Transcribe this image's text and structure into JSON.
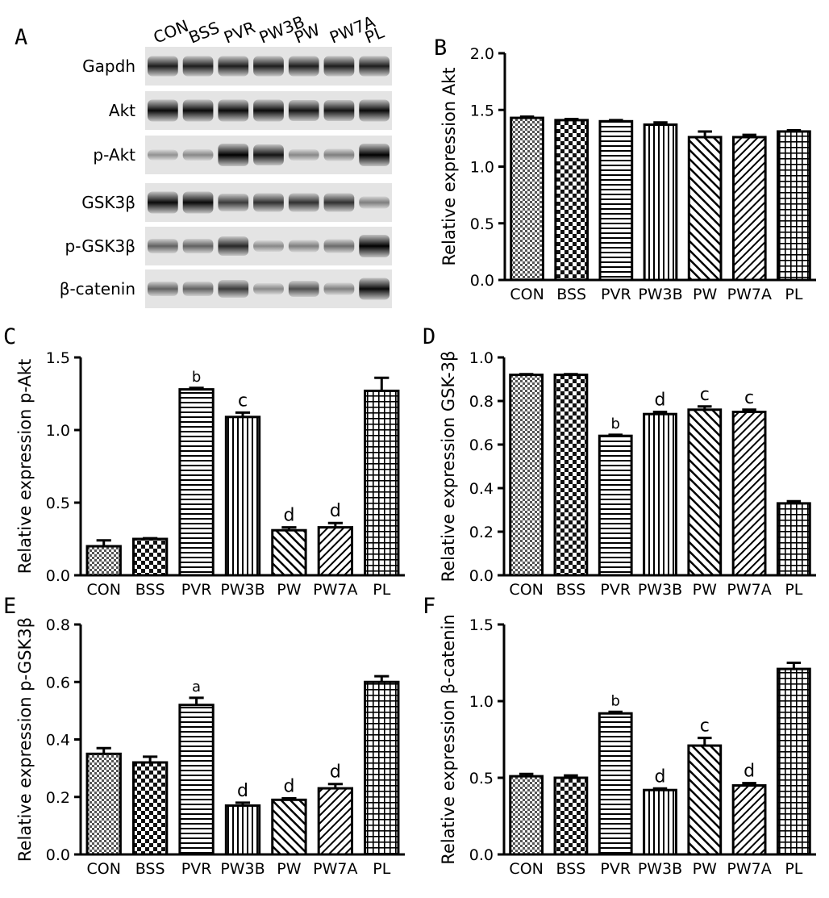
{
  "figure": {
    "panel_letters": [
      "A",
      "B",
      "C",
      "D",
      "E",
      "F"
    ]
  },
  "blot": {
    "lanes": [
      "CON",
      "BSS",
      "PVR",
      "PW3B",
      "PW",
      "PW7A",
      "PL"
    ],
    "rows": [
      {
        "label": "Gapdh",
        "intensity": [
          0.85,
          0.85,
          0.85,
          0.85,
          0.85,
          0.85,
          0.85
        ]
      },
      {
        "label": "Akt",
        "intensity": [
          0.95,
          0.95,
          0.95,
          0.95,
          0.9,
          0.9,
          0.95
        ]
      },
      {
        "label": "p-Akt",
        "intensity": [
          0.25,
          0.3,
          1.0,
          0.9,
          0.3,
          0.35,
          1.0
        ]
      },
      {
        "label": "GSK3β",
        "intensity": [
          0.95,
          0.95,
          0.7,
          0.75,
          0.75,
          0.75,
          0.35
        ]
      },
      {
        "label": "p-GSK3β",
        "intensity": [
          0.5,
          0.5,
          0.8,
          0.3,
          0.35,
          0.45,
          1.0
        ]
      },
      {
        "label": "β-catenin",
        "intensity": [
          0.5,
          0.5,
          0.7,
          0.3,
          0.6,
          0.35,
          0.95
        ]
      }
    ]
  },
  "chart_data": [
    {
      "panel": "B",
      "type": "bar",
      "categories": [
        "CON",
        "BSS",
        "PVR",
        "PW3B",
        "PW",
        "PW7A",
        "PL"
      ],
      "values": [
        1.43,
        1.41,
        1.4,
        1.37,
        1.26,
        1.26,
        1.31
      ],
      "errors": [
        0.01,
        0.01,
        0.01,
        0.02,
        0.05,
        0.02,
        0.01
      ],
      "letters": [
        "",
        "",
        "",
        "",
        "",
        "",
        ""
      ],
      "patterns": [
        "check",
        "bigcheck",
        "hlines",
        "vlines",
        "diag",
        "diag2",
        "grid"
      ],
      "ylabel": "Relative expression Akt",
      "ylim": [
        0,
        2.0
      ],
      "ticks": [
        "0.0",
        "0.5",
        "1.0",
        "1.5",
        "2.0"
      ]
    },
    {
      "panel": "C",
      "type": "bar",
      "categories": [
        "CON",
        "BSS",
        "PVR",
        "PW3B",
        "PW",
        "PW7A",
        "PL"
      ],
      "values": [
        0.2,
        0.25,
        1.28,
        1.09,
        0.31,
        0.33,
        1.27
      ],
      "errors": [
        0.04,
        0.005,
        0.01,
        0.03,
        0.02,
        0.03,
        0.09
      ],
      "letters": [
        "",
        "",
        "b",
        "c",
        "d",
        "d",
        ""
      ],
      "patterns": [
        "check",
        "bigcheck",
        "hlines",
        "vlines",
        "diag",
        "diag2",
        "grid"
      ],
      "ylabel": "Relative expression p-Akt",
      "ylim": [
        0,
        1.5
      ],
      "ticks": [
        "0.0",
        "0.5",
        "1.0",
        "1.5"
      ]
    },
    {
      "panel": "D",
      "type": "bar",
      "categories": [
        "CON",
        "BSS",
        "PVR",
        "PW3B",
        "PW",
        "PW7A",
        "PL"
      ],
      "values": [
        0.92,
        0.92,
        0.64,
        0.74,
        0.76,
        0.75,
        0.33
      ],
      "errors": [
        0.003,
        0.003,
        0.005,
        0.01,
        0.015,
        0.01,
        0.01
      ],
      "letters": [
        "",
        "",
        "b",
        "d",
        "c",
        "c",
        ""
      ],
      "patterns": [
        "check",
        "bigcheck",
        "hlines",
        "vlines",
        "diag",
        "diag2",
        "grid"
      ],
      "ylabel": "Relative expression GSK-3β",
      "ylim": [
        0,
        1.0
      ],
      "ticks": [
        "0.0",
        "0.2",
        "0.4",
        "0.6",
        "0.8",
        "1.0"
      ]
    },
    {
      "panel": "E",
      "type": "bar",
      "categories": [
        "CON",
        "BSS",
        "PVR",
        "PW3B",
        "PW",
        "PW7A",
        "PL"
      ],
      "values": [
        0.35,
        0.32,
        0.52,
        0.17,
        0.19,
        0.23,
        0.6
      ],
      "errors": [
        0.02,
        0.02,
        0.025,
        0.01,
        0.005,
        0.015,
        0.02
      ],
      "letters": [
        "",
        "",
        "a",
        "d",
        "d",
        "d",
        ""
      ],
      "patterns": [
        "check",
        "bigcheck",
        "hlines",
        "vlines",
        "diag",
        "diag2",
        "grid"
      ],
      "ylabel": "Relative expression p-GSK3β",
      "ylim": [
        0,
        0.8
      ],
      "ticks": [
        "0.0",
        "0.2",
        "0.4",
        "0.6",
        "0.8"
      ]
    },
    {
      "panel": "F",
      "type": "bar",
      "categories": [
        "CON",
        "BSS",
        "PVR",
        "PW3B",
        "PW",
        "PW7A",
        "PL"
      ],
      "values": [
        0.51,
        0.5,
        0.92,
        0.42,
        0.71,
        0.45,
        1.21
      ],
      "errors": [
        0.015,
        0.015,
        0.01,
        0.01,
        0.05,
        0.015,
        0.04
      ],
      "letters": [
        "",
        "",
        "b",
        "d",
        "c",
        "d",
        ""
      ],
      "patterns": [
        "check",
        "bigcheck",
        "hlines",
        "vlines",
        "diag",
        "diag2",
        "grid"
      ],
      "ylabel": "Relative expression β-catenin",
      "ylim": [
        0,
        1.5
      ],
      "ticks": [
        "0.0",
        "0.5",
        "1.0",
        "1.5"
      ]
    }
  ]
}
